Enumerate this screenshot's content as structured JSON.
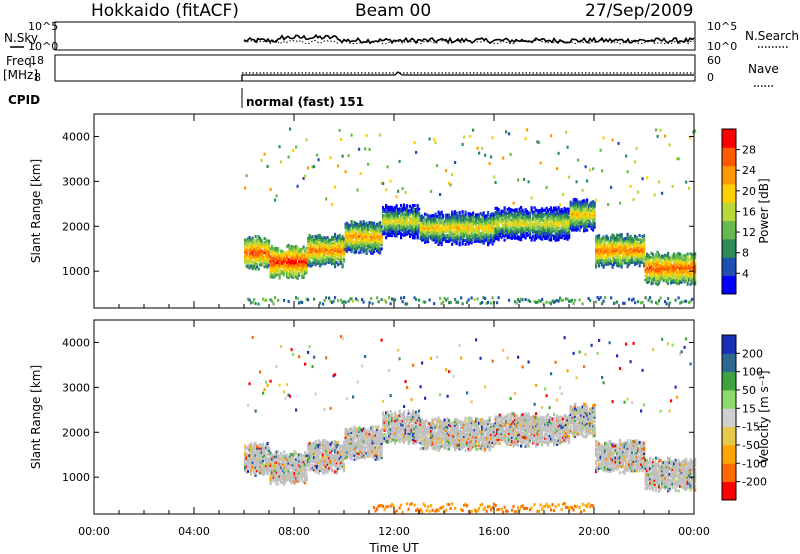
{
  "header": {
    "station": "Hokkaido (fitACF)",
    "beam": "Beam 00",
    "date": "27/Sep/2009"
  },
  "aux_panels": {
    "nsky_label": "N.Sky",
    "nsky_ticks": [
      "10^5",
      "10^0"
    ],
    "nsearch_label": "N.Search",
    "nsearch_ticks": [
      "10^5",
      "10^0"
    ],
    "freq_label_1": "Freq.",
    "freq_label_2": "[MHz]",
    "freq_ticks": [
      "18",
      "8"
    ],
    "nave_label": "Nave",
    "nave_ticks": [
      "60",
      "0"
    ],
    "cpid_label": "CPID",
    "cpid_value": "normal (fast) 151"
  },
  "chart_data": [
    {
      "type": "heatmap",
      "name": "power",
      "ylabel": "Slant Range [km]",
      "ylim": [
        180,
        4500
      ],
      "yticks": [
        "4000",
        "3000",
        "2000",
        "1000"
      ],
      "xlim_hours": [
        0,
        24
      ],
      "data_start_hour": 6,
      "colorbar": {
        "label": "Power [dB]",
        "ticks": [
          "28",
          "24",
          "20",
          "16",
          "12",
          "8",
          "4"
        ],
        "colors": [
          "#0000ff",
          "#1f4fb0",
          "#2e8b57",
          "#66b84f",
          "#b8d83a",
          "#ffd000",
          "#ff9900",
          "#ff5a00",
          "#ff0000"
        ]
      },
      "bands_km": [
        {
          "hour_start": 6.0,
          "hour_end": 7.0,
          "range_km": 1450,
          "level_db": 26
        },
        {
          "hour_start": 7.0,
          "hour_end": 8.5,
          "range_km": 1250,
          "level_db": 28
        },
        {
          "hour_start": 8.5,
          "hour_end": 10.0,
          "range_km": 1500,
          "level_db": 24
        },
        {
          "hour_start": 10.0,
          "hour_end": 11.5,
          "range_km": 1800,
          "level_db": 22
        },
        {
          "hour_start": 11.5,
          "hour_end": 13.0,
          "range_km": 2150,
          "level_db": 18
        },
        {
          "hour_start": 13.0,
          "hour_end": 16.0,
          "range_km": 2000,
          "level_db": 20
        },
        {
          "hour_start": 16.0,
          "hour_end": 19.0,
          "range_km": 2100,
          "level_db": 18
        },
        {
          "hour_start": 19.0,
          "hour_end": 20.0,
          "range_km": 2300,
          "level_db": 20
        },
        {
          "hour_start": 20.0,
          "hour_end": 22.0,
          "range_km": 1500,
          "level_db": 24
        },
        {
          "hour_start": 22.0,
          "hour_end": 24.0,
          "range_km": 1100,
          "level_db": 26
        }
      ]
    },
    {
      "type": "heatmap",
      "name": "velocity",
      "ylabel": "Slant Range [km]",
      "xlabel": "Time UT",
      "ylim": [
        180,
        4500
      ],
      "yticks": [
        "4000",
        "3000",
        "2000",
        "1000"
      ],
      "xticks": [
        "00:00",
        "04:00",
        "08:00",
        "12:00",
        "16:00",
        "20:00",
        "00:00"
      ],
      "xlim_hours": [
        0,
        24
      ],
      "data_start_hour": 6,
      "colorbar": {
        "label": "Velocity [m s⁻¹]",
        "ticks": [
          "200",
          "100",
          "50",
          "15",
          "-15",
          "-50",
          "-100",
          "-200"
        ],
        "colors": [
          "#ff0000",
          "#ff6a00",
          "#ffa500",
          "#e6c84a",
          "#cfcfcf",
          "#8fd96a",
          "#3ea33e",
          "#2e6a8f",
          "#1a2fb8"
        ]
      },
      "ground_scatter_color": "#c0c0c0"
    }
  ]
}
